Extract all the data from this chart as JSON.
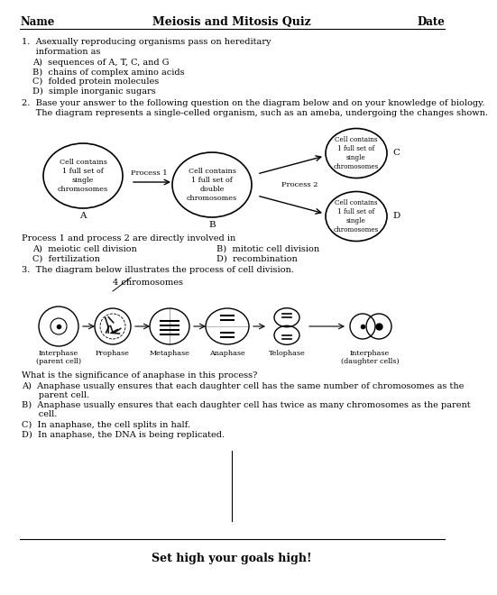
{
  "title": "Meiosis and Mitosis Quiz",
  "header_left": "Name",
  "header_right": "Date",
  "footer": "Set high your goals high!",
  "bg_color": "#ffffff",
  "q1_line1": "1.  Asexually reproducing organisms pass on hereditary",
  "q1_line2": "     information as",
  "q1_choices": [
    "A)  sequences of A, T, C, and G",
    "B)  chains of complex amino acids",
    "C)  folded protein molecules",
    "D)  simple inorganic sugars"
  ],
  "q2_line1": "2.  Base your answer to the following question on the diagram below and on your knowledge of biology.",
  "q2_line2": "     The diagram represents a single-celled organism, such as an ameba, undergoing the changes shown.",
  "q2_question": "Process 1 and process 2 are directly involved in",
  "q2_A": "A)  meiotic cell division",
  "q2_B": "B)  mitotic cell division",
  "q2_C": "C)  fertilization",
  "q2_D": "D)  recombination",
  "q3_line1": "3.  The diagram below illustrates the process of cell division.",
  "q3_label": "4 chromosomes",
  "q3_question": "What is the significance of anaphase in this process?",
  "q3_A1": "A)  Anaphase usually ensures that each daughter cell has the same number of chromosomes as the",
  "q3_A2": "      parent cell.",
  "q3_B1": "B)  Anaphase usually ensures that each daughter cell has twice as many chromosomes as the parent",
  "q3_B2": "      cell.",
  "q3_C": "C)  In anaphase, the cell splits in half.",
  "q3_D": "D)  In anaphase, the DNA is being replicated.",
  "cell_labels": [
    "Interphase\n(parent cell)",
    "Prophase",
    "Metaphase",
    "Anaphase",
    "Telophase",
    "Interphase\n(daughter cells)"
  ]
}
